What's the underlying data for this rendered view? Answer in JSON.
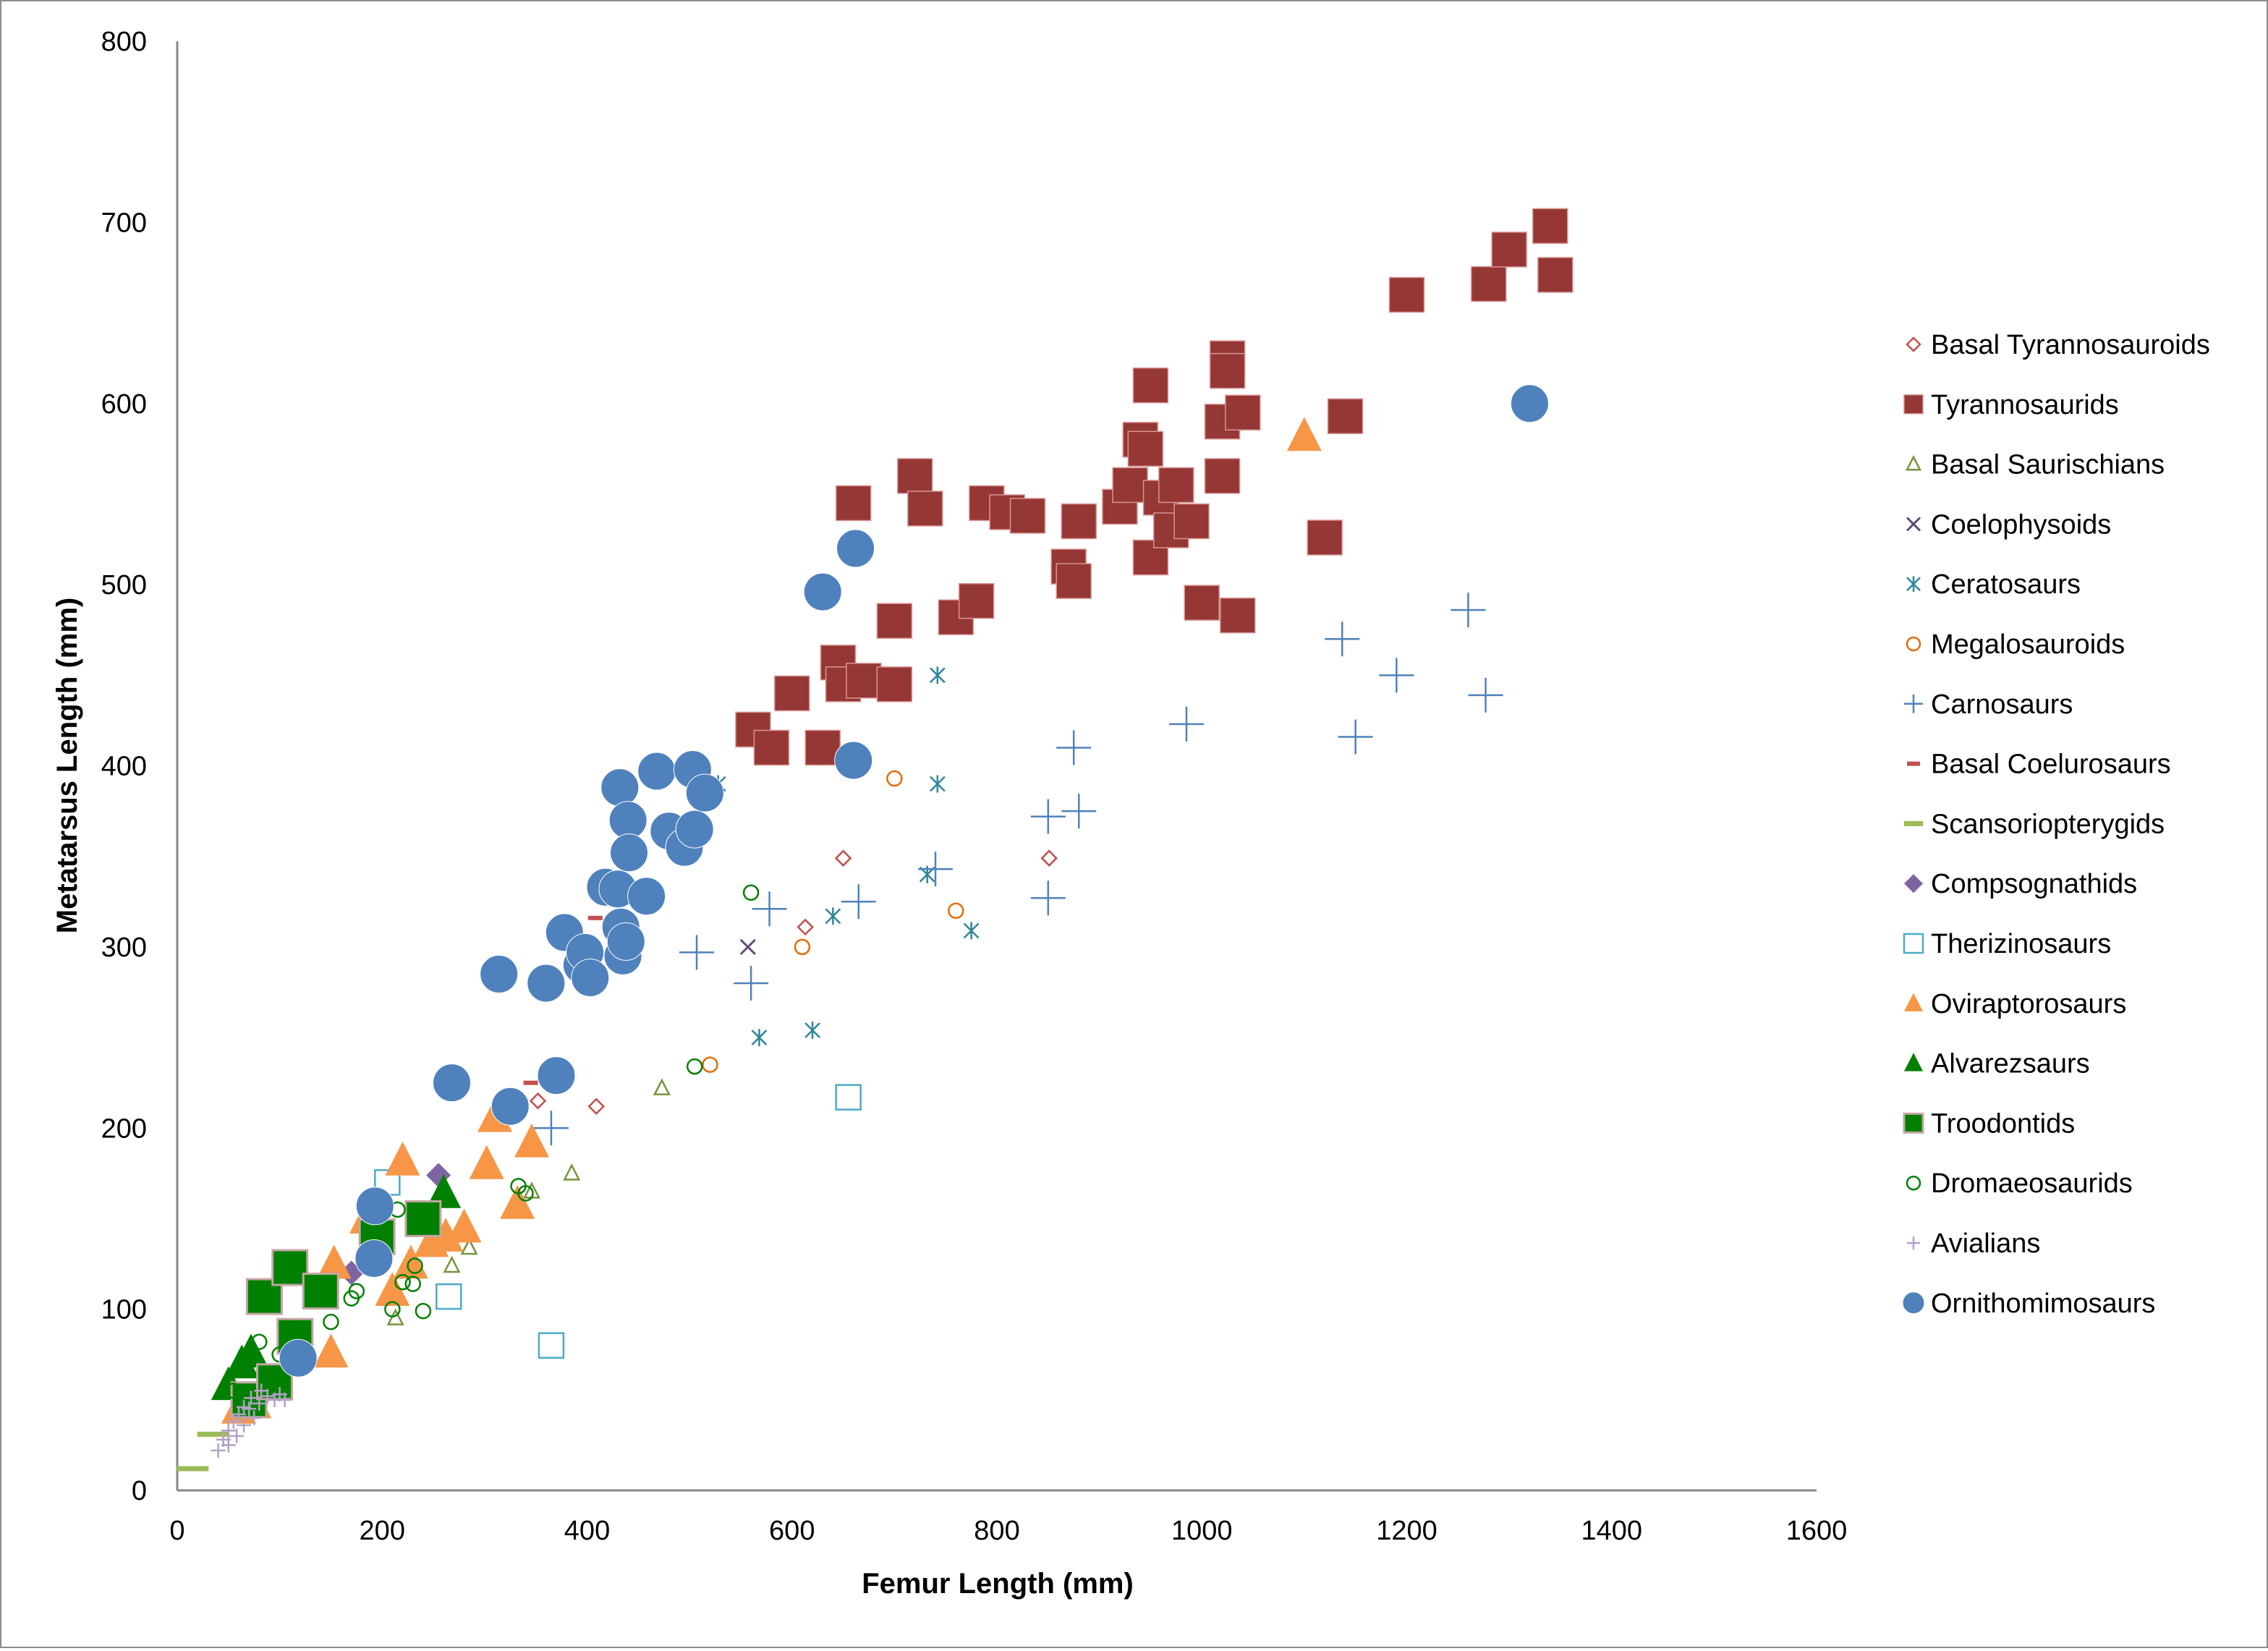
{
  "chart_data": {
    "type": "scatter",
    "title": "",
    "xlabel": "Femur Length (mm)",
    "ylabel": "Metatarsus Length (mm)",
    "xlim": [
      0,
      1600
    ],
    "ylim": [
      0,
      800
    ],
    "x_ticks": [
      "0",
      "200",
      "400",
      "600",
      "800",
      "1000",
      "1200",
      "1400",
      "1600"
    ],
    "y_ticks": [
      "0",
      "100",
      "200",
      "300",
      "400",
      "500",
      "600",
      "700",
      "800"
    ],
    "grid": false,
    "legend_position": "right",
    "series": [
      {
        "name": "Basal Tyrannosauroids",
        "marker": "diamond-open",
        "color": "#c0504d",
        "size": "small",
        "points": [
          [
            352,
            215
          ],
          [
            409,
            212
          ],
          [
            613,
            311
          ],
          [
            650,
            349
          ],
          [
            851,
            349
          ]
        ]
      },
      {
        "name": "Tyrannosaurids",
        "marker": "square-filled",
        "color": "#953735",
        "size": "large",
        "points": [
          [
            562,
            420
          ],
          [
            580,
            410
          ],
          [
            600,
            440
          ],
          [
            630,
            410
          ],
          [
            645,
            457
          ],
          [
            660,
            545
          ],
          [
            650,
            445
          ],
          [
            670,
            447
          ],
          [
            700,
            480
          ],
          [
            700,
            445
          ],
          [
            720,
            560
          ],
          [
            730,
            542
          ],
          [
            760,
            482
          ],
          [
            780,
            491
          ],
          [
            790,
            545
          ],
          [
            810,
            540
          ],
          [
            830,
            538
          ],
          [
            870,
            510
          ],
          [
            875,
            502
          ],
          [
            880,
            535
          ],
          [
            920,
            543
          ],
          [
            930,
            555
          ],
          [
            940,
            580
          ],
          [
            945,
            575
          ],
          [
            950,
            610
          ],
          [
            950,
            515
          ],
          [
            960,
            548
          ],
          [
            970,
            530
          ],
          [
            975,
            555
          ],
          [
            990,
            535
          ],
          [
            1000,
            490
          ],
          [
            1020,
            560
          ],
          [
            1020,
            590
          ],
          [
            1025,
            625
          ],
          [
            1025,
            618
          ],
          [
            1035,
            483
          ],
          [
            1040,
            595
          ],
          [
            1120,
            526
          ],
          [
            1140,
            593
          ],
          [
            1200,
            660
          ],
          [
            1280,
            666
          ],
          [
            1300,
            685
          ],
          [
            1340,
            698
          ],
          [
            1345,
            671
          ]
        ]
      },
      {
        "name": "Basal Saurischians",
        "marker": "triangle-open",
        "color": "#77933c",
        "size": "small",
        "points": [
          [
            213,
            95
          ],
          [
            268,
            124
          ],
          [
            285,
            134
          ],
          [
            346,
            165
          ],
          [
            385,
            175
          ],
          [
            473,
            222
          ]
        ]
      },
      {
        "name": "Coelophysoids",
        "marker": "x",
        "color": "#604a7b",
        "size": "small",
        "points": [
          [
            557,
            300
          ]
        ]
      },
      {
        "name": "Ceratosaurs",
        "marker": "asterisk",
        "color": "#31859c",
        "size": "small",
        "points": [
          [
            528,
            390
          ],
          [
            568,
            250
          ],
          [
            620,
            254
          ],
          [
            640,
            317
          ],
          [
            732,
            340
          ],
          [
            742,
            450
          ],
          [
            742,
            390
          ],
          [
            775,
            309
          ]
        ]
      },
      {
        "name": "Megalosauroids",
        "marker": "circle-open",
        "color": "#e46c0a",
        "size": "small",
        "points": [
          [
            520,
            235
          ],
          [
            610,
            300
          ],
          [
            700,
            393
          ],
          [
            760,
            320
          ]
        ]
      },
      {
        "name": "Carnosaurs",
        "marker": "plus",
        "color": "#4f81bd",
        "size": "large",
        "points": [
          [
            365,
            200
          ],
          [
            507,
            297
          ],
          [
            560,
            280
          ],
          [
            578,
            321
          ],
          [
            665,
            325
          ],
          [
            740,
            343
          ],
          [
            850,
            327
          ],
          [
            850,
            372
          ],
          [
            875,
            410
          ],
          [
            880,
            375
          ],
          [
            985,
            423
          ],
          [
            1137,
            470
          ],
          [
            1150,
            416
          ],
          [
            1190,
            450
          ],
          [
            1260,
            486
          ],
          [
            1277,
            439
          ]
        ]
      },
      {
        "name": "Basal Coelurosaurs",
        "marker": "dash",
        "color": "#c0504d",
        "size": "small",
        "points": [
          [
            345,
            225
          ],
          [
            408,
            316
          ]
        ]
      },
      {
        "name": "Scansoriopterygids",
        "marker": "bar",
        "color": "#9bbb59",
        "size": "small",
        "points": [
          [
            15,
            12
          ],
          [
            35,
            31
          ]
        ]
      },
      {
        "name": "Compsognathids",
        "marker": "diamond-filled",
        "color": "#8064a2",
        "size": "medium",
        "points": [
          [
            170,
            120
          ],
          [
            255,
            174
          ]
        ]
      },
      {
        "name": "Therizinosaurs",
        "marker": "square-open",
        "color": "#4bacc6",
        "size": "medium",
        "points": [
          [
            205,
            170
          ],
          [
            265,
            107
          ],
          [
            365,
            80
          ],
          [
            655,
            217
          ]
        ]
      },
      {
        "name": "Oviraptorosaurs",
        "marker": "triangle-filled",
        "color": "#f79646",
        "size": "large",
        "points": [
          [
            60,
            45
          ],
          [
            75,
            48
          ],
          [
            150,
            76
          ],
          [
            153,
            125
          ],
          [
            185,
            150
          ],
          [
            210,
            110
          ],
          [
            220,
            182
          ],
          [
            228,
            125
          ],
          [
            248,
            137
          ],
          [
            262,
            140
          ],
          [
            280,
            145
          ],
          [
            302,
            180
          ],
          [
            310,
            206
          ],
          [
            332,
            158
          ],
          [
            346,
            192
          ],
          [
            1100,
            582
          ]
        ]
      },
      {
        "name": "Alvarezsaurs",
        "marker": "triangle-filled",
        "color": "#008000",
        "size": "large",
        "points": [
          [
            50,
            58
          ],
          [
            63,
            70
          ],
          [
            72,
            76
          ],
          [
            260,
            164
          ]
        ]
      },
      {
        "name": "Troodontids",
        "marker": "square-filled-outlined",
        "color": "#008000",
        "size": "large",
        "points": [
          [
            70,
            50
          ],
          [
            85,
            107
          ],
          [
            95,
            60
          ],
          [
            110,
            123
          ],
          [
            115,
            85
          ],
          [
            140,
            110
          ],
          [
            195,
            140
          ],
          [
            240,
            150
          ]
        ]
      },
      {
        "name": "Dromaeosaurids",
        "marker": "circle-open",
        "color": "#008000",
        "size": "small",
        "points": [
          [
            55,
            55
          ],
          [
            80,
            82
          ],
          [
            100,
            75
          ],
          [
            150,
            93
          ],
          [
            170,
            106
          ],
          [
            175,
            110
          ],
          [
            210,
            100
          ],
          [
            215,
            155
          ],
          [
            220,
            115
          ],
          [
            230,
            114
          ],
          [
            232,
            124
          ],
          [
            240,
            99
          ],
          [
            333,
            168
          ],
          [
            340,
            164
          ],
          [
            505,
            234
          ],
          [
            560,
            330
          ]
        ]
      },
      {
        "name": "Avialians",
        "marker": "plus",
        "color": "#b2a1c7",
        "size": "small",
        "points": [
          [
            40,
            22
          ],
          [
            45,
            28
          ],
          [
            50,
            33
          ],
          [
            50,
            25
          ],
          [
            55,
            38
          ],
          [
            58,
            30
          ],
          [
            60,
            42
          ],
          [
            65,
            36
          ],
          [
            65,
            46
          ],
          [
            70,
            45
          ],
          [
            72,
            51
          ],
          [
            75,
            40
          ],
          [
            80,
            48
          ],
          [
            82,
            55
          ],
          [
            88,
            52
          ],
          [
            95,
            50
          ],
          [
            100,
            53
          ],
          [
            105,
            50
          ]
        ]
      },
      {
        "name": "Ornithomimosaurs",
        "marker": "circle-filled",
        "color": "#4f81bd",
        "size": "large",
        "points": [
          [
            118,
            73
          ],
          [
            192,
            128
          ],
          [
            193,
            157
          ],
          [
            268,
            225
          ],
          [
            325,
            212
          ],
          [
            314,
            285
          ],
          [
            360,
            280
          ],
          [
            370,
            229
          ],
          [
            378,
            308
          ],
          [
            395,
            290
          ],
          [
            398,
            297
          ],
          [
            403,
            283
          ],
          [
            418,
            333
          ],
          [
            430,
            332
          ],
          [
            432,
            388
          ],
          [
            433,
            311
          ],
          [
            435,
            295
          ],
          [
            438,
            303
          ],
          [
            440,
            370
          ],
          [
            441,
            352
          ],
          [
            458,
            328
          ],
          [
            468,
            397
          ],
          [
            480,
            364
          ],
          [
            495,
            355
          ],
          [
            503,
            398
          ],
          [
            505,
            365
          ],
          [
            515,
            385
          ],
          [
            630,
            496
          ],
          [
            660,
            403
          ],
          [
            662,
            520
          ],
          [
            1320,
            600
          ]
        ]
      }
    ]
  }
}
